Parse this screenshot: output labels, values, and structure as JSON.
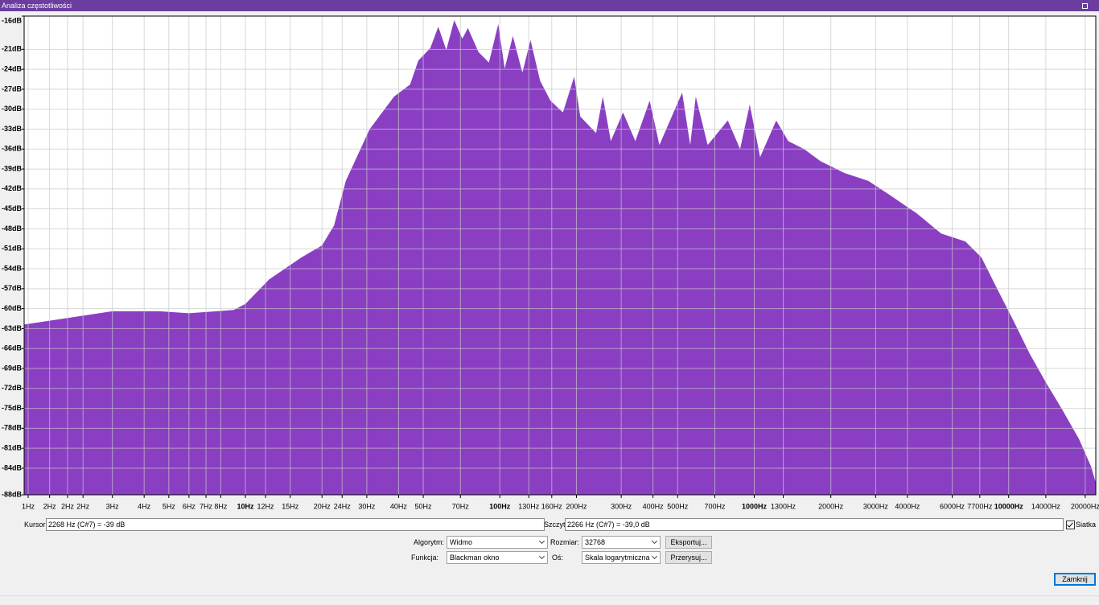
{
  "window": {
    "title": "Analiza częstotliwości"
  },
  "chart_data": {
    "type": "area",
    "color": "#8a3fc3",
    "xscale": "log",
    "grid": true,
    "x": [
      1.35,
      2.0,
      3.0,
      4.6,
      6.0,
      9.0,
      10,
      12.4,
      16.6,
      20,
      22.3,
      24.8,
      30.8,
      38.4,
      44.4,
      47.8,
      53.3,
      57.3,
      61.6,
      66.2,
      71.2,
      74.9,
      82.4,
      90.6,
      98.6,
      104.5,
      112.5,
      122.7,
      132,
      144,
      158,
      177,
      196,
      207,
      239,
      254,
      273,
      305,
      341,
      388,
      424,
      521,
      560,
      589,
      656,
      787,
      880,
      960,
      1055,
      1220,
      1360,
      1570,
      1820,
      2260,
      2810,
      3500,
      4360,
      5430,
      6760,
      7820,
      9060,
      10500,
      12100,
      14000,
      16300,
      18900,
      21100,
      22000
    ],
    "values": [
      -62.4,
      -61.4,
      -60.4,
      -60.4,
      -60.7,
      -60.2,
      -59.3,
      -55.6,
      -52.3,
      -50.5,
      -47.5,
      -40.8,
      -33.0,
      -28.1,
      -26.3,
      -22.7,
      -20.8,
      -17.6,
      -21.1,
      -16.6,
      -19.4,
      -17.8,
      -21.4,
      -23.0,
      -17.2,
      -23.9,
      -19.0,
      -24.5,
      -19.6,
      -25.7,
      -28.7,
      -30.5,
      -25.1,
      -31.1,
      -33.6,
      -28.1,
      -34.8,
      -30.5,
      -34.8,
      -28.7,
      -35.4,
      -27.5,
      -35.4,
      -28.1,
      -35.4,
      -31.7,
      -36.0,
      -29.3,
      -37.2,
      -31.7,
      -34.8,
      -36.0,
      -37.8,
      -39.6,
      -40.8,
      -43.2,
      -45.7,
      -48.7,
      -49.9,
      -52.3,
      -57.2,
      -62.0,
      -66.8,
      -71.1,
      -75.3,
      -79.6,
      -83.8,
      -86.2
    ],
    "xlim": [
      1.35,
      22000
    ],
    "ylim": [
      -88,
      -16
    ],
    "xticks": [
      {
        "value": 1.4,
        "label": "1Hz"
      },
      {
        "value": 1.7,
        "label": "2Hz"
      },
      {
        "value": 2,
        "label": "2Hz"
      },
      {
        "value": 2.3,
        "label": "2Hz"
      },
      {
        "value": 3,
        "label": "3Hz"
      },
      {
        "value": 4,
        "label": "4Hz"
      },
      {
        "value": 5,
        "label": "5Hz"
      },
      {
        "value": 6,
        "label": "6Hz"
      },
      {
        "value": 7,
        "label": "7Hz"
      },
      {
        "value": 8,
        "label": "8Hz"
      },
      {
        "value": 10,
        "label": "10Hz"
      },
      {
        "value": 12,
        "label": "12Hz"
      },
      {
        "value": 15,
        "label": "15Hz"
      },
      {
        "value": 20,
        "label": "20Hz"
      },
      {
        "value": 24,
        "label": "24Hz"
      },
      {
        "value": 30,
        "label": "30Hz"
      },
      {
        "value": 40,
        "label": "40Hz"
      },
      {
        "value": 50,
        "label": "50Hz"
      },
      {
        "value": 70,
        "label": "70Hz"
      },
      {
        "value": 100,
        "label": "100Hz"
      },
      {
        "value": 130,
        "label": "130Hz"
      },
      {
        "value": 160,
        "label": "160Hz"
      },
      {
        "value": 200,
        "label": "200Hz"
      },
      {
        "value": 300,
        "label": "300Hz"
      },
      {
        "value": 400,
        "label": "400Hz"
      },
      {
        "value": 500,
        "label": "500Hz"
      },
      {
        "value": 700,
        "label": "700Hz"
      },
      {
        "value": 1000,
        "label": "1000Hz"
      },
      {
        "value": 1300,
        "label": "1300Hz"
      },
      {
        "value": 2000,
        "label": "2000Hz"
      },
      {
        "value": 3000,
        "label": "3000Hz"
      },
      {
        "value": 4000,
        "label": "4000Hz"
      },
      {
        "value": 6000,
        "label": "6000Hz"
      },
      {
        "value": 7700,
        "label": "7700Hz"
      },
      {
        "value": 10000,
        "label": "10000Hz"
      },
      {
        "value": 14000,
        "label": "14000Hz"
      },
      {
        "value": 20000,
        "label": "20000Hz"
      }
    ],
    "yticks": [
      {
        "value": -16,
        "label": "-16dB"
      },
      {
        "value": -21,
        "label": "-21dB"
      },
      {
        "value": -24,
        "label": "-24dB"
      },
      {
        "value": -27,
        "label": "-27dB"
      },
      {
        "value": -30,
        "label": "-30dB"
      },
      {
        "value": -33,
        "label": "-33dB"
      },
      {
        "value": -36,
        "label": "-36dB"
      },
      {
        "value": -39,
        "label": "-39dB"
      },
      {
        "value": -42,
        "label": "-42dB"
      },
      {
        "value": -45,
        "label": "-45dB"
      },
      {
        "value": -48,
        "label": "-48dB"
      },
      {
        "value": -51,
        "label": "-51dB"
      },
      {
        "value": -54,
        "label": "-54dB"
      },
      {
        "value": -57,
        "label": "-57dB"
      },
      {
        "value": -60,
        "label": "-60dB"
      },
      {
        "value": -63,
        "label": "-63dB"
      },
      {
        "value": -66,
        "label": "-66dB"
      },
      {
        "value": -69,
        "label": "-69dB"
      },
      {
        "value": -72,
        "label": "-72dB"
      },
      {
        "value": -75,
        "label": "-75dB"
      },
      {
        "value": -78,
        "label": "-78dB"
      },
      {
        "value": -81,
        "label": "-81dB"
      },
      {
        "value": -84,
        "label": "-84dB"
      },
      {
        "value": -88,
        "label": "-88dB"
      }
    ]
  },
  "controls": {
    "cursor_label": "Kursor:",
    "cursor_value": "2268 Hz (C#7) = -39 dB",
    "peak_label": "Szczyt:",
    "peak_value": "2266 Hz (C#7) = -39,0 dB",
    "grid_label": "Siatka",
    "algorithm_label": "Algorytm:",
    "algorithm_value": "Widmo",
    "size_label": "Rozmiar:",
    "size_value": "32768",
    "export_button": "Eksportuj...",
    "function_label": "Funkcja:",
    "function_value": "Blackman okno",
    "axis_label": "Oś:",
    "axis_value": "Skala logarytmiczna",
    "redraw_button": "Przerysuj...",
    "close_button": "Zamknij"
  }
}
